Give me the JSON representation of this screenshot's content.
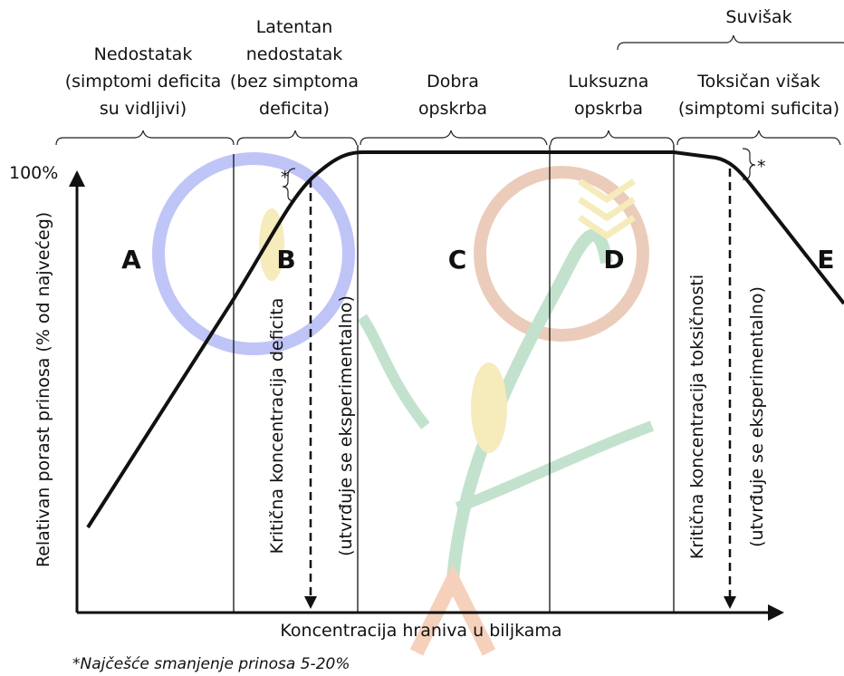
{
  "percent_label": "100%",
  "y_axis_label": "Relativan porast prinosa (% od najvećeg)",
  "x_axis_label": "Koncentracija hraniva u biljkama",
  "excess_label": "Suvišak",
  "zones": [
    {
      "lines": [
        "Nedostatak",
        "(simptomi deficita",
        "su vidljivi)"
      ],
      "letter": "A"
    },
    {
      "lines": [
        "Latentan",
        "nedostatak",
        "(bez simptoma",
        "deficita)"
      ],
      "letter": "B"
    },
    {
      "lines": [
        "Dobra",
        "opskrba"
      ],
      "letter": "C"
    },
    {
      "lines": [
        "Luksuzna",
        "opskrba"
      ],
      "letter": "D"
    },
    {
      "lines": [
        "Toksičan višak",
        "(simptomi suficita)"
      ],
      "letter": "E"
    }
  ],
  "vertical_labels": [
    "Kritična koncentracija deficita",
    "(utvrđuje se eksperimentalno)",
    "Kritična koncentracija toksičnosti",
    "(utvrđuje se eksperimentalno)"
  ],
  "asterisks": [
    "*",
    "*"
  ],
  "footnote": "*Najčešće smanjenje prinosa 5-20%"
}
